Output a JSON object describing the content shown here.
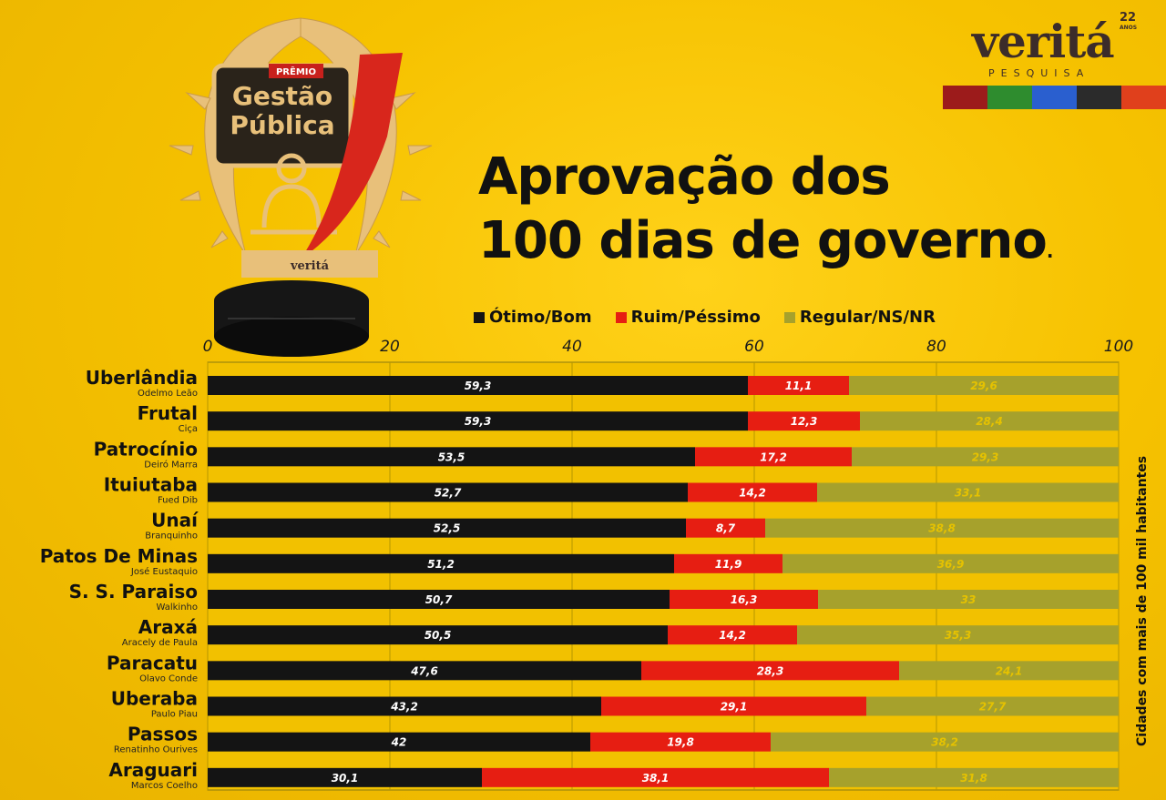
{
  "award": {
    "small_label": "PRÊMIO",
    "line1": "Gestão",
    "line2": "Pública",
    "base_brand": "veritá"
  },
  "brand": {
    "name": "veritá",
    "years": "22",
    "years_sub": "ANOS",
    "subtitle": "PESQUISA",
    "strip_colors": [
      "#9c1b1b",
      "#2e8c2e",
      "#2a5fcf",
      "#2b2b2b",
      "#e0401c"
    ]
  },
  "title": {
    "line1": "Aprovação dos",
    "line2": "100 dias de governo",
    "end_mark": "."
  },
  "side_note": "Cidades com mais de 100 mil habitantes",
  "colors": {
    "otimo_bom": "#141414",
    "ruim_pessimo": "#e61e12",
    "regular": "#a6a12c",
    "plot_bg": "#f2c100"
  },
  "chart_data": {
    "type": "bar",
    "orientation": "horizontal",
    "stacked": true,
    "xlim": [
      0,
      100
    ],
    "x_ticks": [
      "0",
      "20",
      "40",
      "60",
      "80",
      "100"
    ],
    "legend_position": "top",
    "categories": [
      "Uberlândia",
      "Frutal",
      "Patrocínio",
      "Ituiutaba",
      "Unaí",
      "Patos De Minas",
      "S. S. Paraiso",
      "Araxá",
      "Paracatu",
      "Uberaba",
      "Passos",
      "Araguari"
    ],
    "subtitles": [
      "Odelmo Leão",
      "Ciça",
      "Deiró Marra",
      "Fued Dib",
      "Branquinho",
      "José Eustaquio",
      "Walkinho",
      "Aracely de Paula",
      "Olavo Conde",
      "Paulo Piau",
      "Renatinho Ourives",
      "Marcos Coelho"
    ],
    "series": [
      {
        "name": "Ótimo/Bom",
        "values": [
          59.3,
          59.3,
          53.5,
          52.7,
          52.5,
          51.2,
          50.7,
          50.5,
          47.6,
          43.2,
          42,
          30.1
        ],
        "labels": [
          "59,3",
          "59,3",
          "53,5",
          "52,7",
          "52,5",
          "51,2",
          "50,7",
          "50,5",
          "47,6",
          "43,2",
          "42",
          "30,1"
        ]
      },
      {
        "name": "Ruim/Péssimo",
        "values": [
          11.1,
          12.3,
          17.2,
          14.2,
          8.7,
          11.9,
          16.3,
          14.2,
          28.3,
          29.1,
          19.8,
          38.1
        ],
        "labels": [
          "11,1",
          "12,3",
          "17,2",
          "14,2",
          "8,7",
          "11,9",
          "16,3",
          "14,2",
          "28,3",
          "29,1",
          "19,8",
          "38,1"
        ]
      },
      {
        "name": "Regular/NS/NR",
        "values": [
          29.6,
          28.4,
          29.3,
          33.1,
          38.8,
          36.9,
          33,
          35.3,
          24.1,
          27.7,
          38.2,
          31.8
        ],
        "labels": [
          "29,6",
          "28,4",
          "29,3",
          "33,1",
          "38,8",
          "36,9",
          "33",
          "35,3",
          "24,1",
          "27,7",
          "38,2",
          "31,8"
        ]
      }
    ]
  }
}
